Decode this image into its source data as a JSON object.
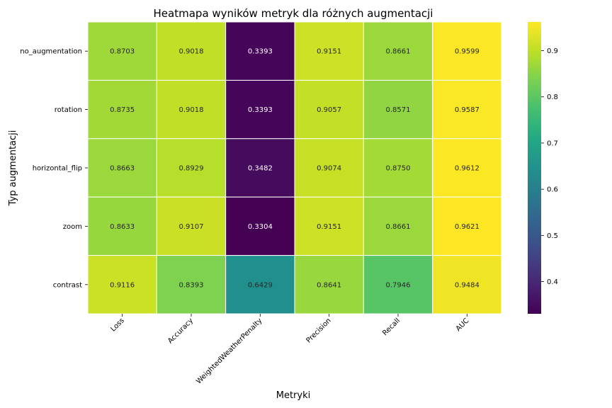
{
  "chart_data": {
    "type": "heatmap",
    "title": "Heatmapa wyników metryk dla różnych augmentacji",
    "xlabel": "Metryki",
    "ylabel": "Typ augmentacji",
    "columns": [
      "Loss",
      "Accuracy",
      "WeightedWeatherPenalty",
      "Precision",
      "Recall",
      "AUC"
    ],
    "rows": [
      "no_augmentation",
      "rotation",
      "horizontal_flip",
      "zoom",
      "contrast"
    ],
    "values": [
      [
        0.8703,
        0.9018,
        0.3393,
        0.9151,
        0.8661,
        0.9599
      ],
      [
        0.8735,
        0.9018,
        0.3393,
        0.9057,
        0.8571,
        0.9587
      ],
      [
        0.8663,
        0.8929,
        0.3482,
        0.9074,
        0.875,
        0.9612
      ],
      [
        0.8633,
        0.9107,
        0.3304,
        0.9151,
        0.8661,
        0.9621
      ],
      [
        0.9116,
        0.8393,
        0.6429,
        0.8641,
        0.7946,
        0.9484
      ]
    ],
    "value_labels": [
      [
        "0.8703",
        "0.9018",
        "0.3393",
        "0.9151",
        "0.8661",
        "0.9599"
      ],
      [
        "0.8735",
        "0.9018",
        "0.3393",
        "0.9057",
        "0.8571",
        "0.9587"
      ],
      [
        "0.8663",
        "0.8929",
        "0.3482",
        "0.9074",
        "0.8750",
        "0.9612"
      ],
      [
        "0.8633",
        "0.9107",
        "0.3304",
        "0.9151",
        "0.8661",
        "0.9621"
      ],
      [
        "0.9116",
        "0.8393",
        "0.6429",
        "0.8641",
        "0.7946",
        "0.9484"
      ]
    ],
    "colormap": "viridis",
    "vmin": 0.3304,
    "vmax": 0.9621,
    "colorbar_ticks": [
      0.4,
      0.5,
      0.6,
      0.7,
      0.8,
      0.9
    ],
    "colorbar_tick_labels": [
      "0.4",
      "0.5",
      "0.6",
      "0.7",
      "0.8",
      "0.9"
    ],
    "colorbar_placement": "right",
    "cell_border_color": "#ffffff"
  }
}
